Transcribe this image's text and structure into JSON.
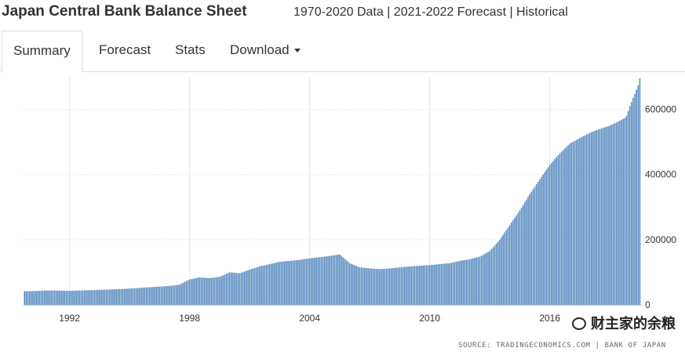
{
  "header": {
    "title": "Japan Central Bank Balance Sheet",
    "subtitle": "1970-2020 Data | 2021-2022 Forecast | Historical"
  },
  "tabs": [
    {
      "label": "Summary",
      "active": true
    },
    {
      "label": "Forecast",
      "active": false
    },
    {
      "label": "Stats",
      "active": false
    },
    {
      "label": "Download",
      "active": false,
      "dropdown": true
    }
  ],
  "footer": {
    "source": "SOURCE: TRADINGECONOMICS.COM | BANK OF JAPAN",
    "watermark": "财主家的余粮"
  },
  "colors": {
    "bar": "#4f86bd",
    "grid": "#e6e6e6",
    "axis": "#cccccc"
  },
  "chart_data": {
    "type": "bar",
    "title": "",
    "xlabel": "",
    "ylabel": "",
    "x_range": [
      1989.7,
      2020.6
    ],
    "ylim": [
      0,
      700000
    ],
    "x_ticks": [
      1992,
      1998,
      2004,
      2010,
      2016
    ],
    "x_tick_labels": [
      "1992",
      "1998",
      "2004",
      "2010",
      "2016"
    ],
    "y_ticks": [
      0,
      200000,
      400000,
      600000
    ],
    "y_tick_labels": [
      "0",
      "200000",
      "400000",
      "600000"
    ],
    "grid": true,
    "y_axis_side": "right",
    "series": [
      {
        "points": [
          [
            1990.0,
            42000
          ],
          [
            1991.0,
            44000
          ],
          [
            1992.0,
            43000
          ],
          [
            1993.0,
            45000
          ],
          [
            1994.0,
            47000
          ],
          [
            1995.0,
            50000
          ],
          [
            1996.0,
            54000
          ],
          [
            1997.0,
            58000
          ],
          [
            1997.5,
            62000
          ],
          [
            1998.0,
            78000
          ],
          [
            1998.5,
            84000
          ],
          [
            1999.0,
            82000
          ],
          [
            1999.5,
            86000
          ],
          [
            2000.0,
            100000
          ],
          [
            2000.5,
            97000
          ],
          [
            2001.0,
            108000
          ],
          [
            2001.5,
            118000
          ],
          [
            2002.0,
            125000
          ],
          [
            2002.5,
            132000
          ],
          [
            2003.0,
            135000
          ],
          [
            2003.5,
            138000
          ],
          [
            2004.0,
            143000
          ],
          [
            2004.5,
            146000
          ],
          [
            2005.0,
            150000
          ],
          [
            2005.5,
            155000
          ],
          [
            2006.0,
            128000
          ],
          [
            2006.5,
            115000
          ],
          [
            2007.0,
            112000
          ],
          [
            2007.5,
            110000
          ],
          [
            2008.0,
            112000
          ],
          [
            2008.5,
            115000
          ],
          [
            2009.0,
            118000
          ],
          [
            2009.5,
            120000
          ],
          [
            2010.0,
            122000
          ],
          [
            2010.5,
            125000
          ],
          [
            2011.0,
            128000
          ],
          [
            2011.5,
            135000
          ],
          [
            2012.0,
            140000
          ],
          [
            2012.5,
            148000
          ],
          [
            2013.0,
            165000
          ],
          [
            2013.5,
            200000
          ],
          [
            2014.0,
            245000
          ],
          [
            2014.5,
            290000
          ],
          [
            2015.0,
            340000
          ],
          [
            2015.5,
            385000
          ],
          [
            2016.0,
            430000
          ],
          [
            2016.5,
            465000
          ],
          [
            2017.0,
            495000
          ],
          [
            2017.5,
            512000
          ],
          [
            2018.0,
            528000
          ],
          [
            2018.5,
            540000
          ],
          [
            2019.0,
            550000
          ],
          [
            2019.5,
            565000
          ],
          [
            2019.8,
            575000
          ],
          [
            2020.0,
            610000
          ],
          [
            2020.2,
            640000
          ],
          [
            2020.4,
            670000
          ],
          [
            2020.5,
            695000
          ]
        ]
      }
    ]
  }
}
